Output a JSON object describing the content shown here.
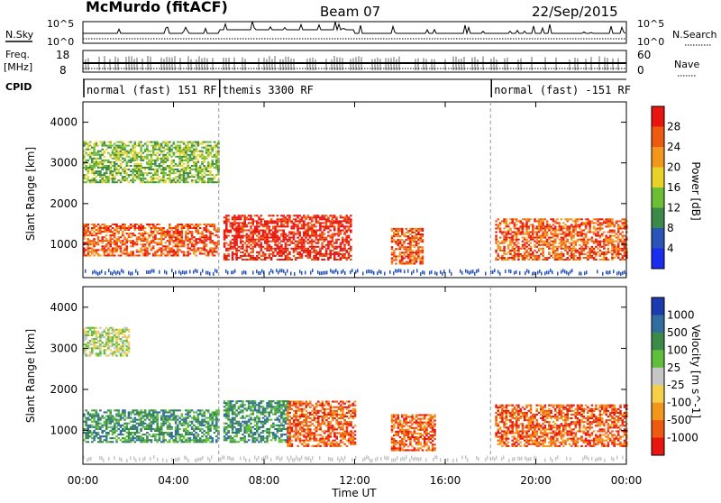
{
  "header": {
    "station": "McMurdo (fitACF)",
    "beam": "Beam 07",
    "date": "22/Sep/2015"
  },
  "aux_panels": {
    "nsky_label": "N.Sky",
    "nsky_scale_top": "10^5",
    "nsky_scale_bottom": "10^0",
    "nsearch_label": "N.Search",
    "nsearch_scale_top": "10^5",
    "nsearch_scale_bottom": "10^0",
    "freq_label": "Freq.",
    "freq_unit": "[MHz]",
    "freq_ticks": [
      "18",
      "8"
    ],
    "nave_label": "Nave",
    "nave_ticks": [
      "60",
      "0"
    ],
    "cpid_label": "CPID",
    "cpid_segments": [
      {
        "label": "normal (fast) 151 RF",
        "start_h": 0,
        "end_h": 6
      },
      {
        "label": "themis 3300 RF",
        "start_h": 6,
        "end_h": 18
      },
      {
        "label": "normal (fast) -151 RF",
        "start_h": 18,
        "end_h": 24
      }
    ]
  },
  "chart_data": [
    {
      "type": "heatmap",
      "ylabel": "Slant Range [km]",
      "xlabel": "Time UT",
      "xlim": [
        0,
        24
      ],
      "ylim": [
        180,
        4500
      ],
      "x_ticks": [
        "00:00",
        "04:00",
        "08:00",
        "12:00",
        "16:00",
        "20:00",
        "00:00"
      ],
      "y_ticks": [
        1000,
        2000,
        3000,
        4000
      ],
      "colorbar": {
        "title": "Power [dB]",
        "ticks": [
          "4",
          "8",
          "12",
          "16",
          "20",
          "24",
          "28"
        ],
        "colors": [
          "#1a2cf0",
          "#2a55b8",
          "#3b8a4a",
          "#6cbf35",
          "#e8d22a",
          "#f3961c",
          "#ef5a12",
          "#e8160f"
        ]
      },
      "echo_regions": [
        {
          "t0": 0.0,
          "t1": 6.0,
          "r0": 700,
          "r1": 1500,
          "level": 6
        },
        {
          "t0": 6.2,
          "t1": 11.8,
          "r0": 600,
          "r1": 1700,
          "level": 7
        },
        {
          "t0": 13.6,
          "t1": 15.0,
          "r0": 500,
          "r1": 1400,
          "level": 6
        },
        {
          "t0": 18.2,
          "t1": 24.0,
          "r0": 600,
          "r1": 1600,
          "level": 6
        },
        {
          "t0": 0.0,
          "t1": 6.0,
          "r0": 2500,
          "r1": 3500,
          "level": 3
        }
      ]
    },
    {
      "type": "heatmap",
      "ylabel": "Slant Range [km]",
      "xlabel": "Time UT",
      "xlim": [
        0,
        24
      ],
      "ylim": [
        180,
        4500
      ],
      "x_ticks": [
        "00:00",
        "04:00",
        "08:00",
        "12:00",
        "16:00",
        "20:00",
        "00:00"
      ],
      "y_ticks": [
        1000,
        2000,
        3000,
        4000
      ],
      "colorbar": {
        "title": "Velocity [m s^-1]",
        "ticks": [
          "1000",
          "500",
          "100",
          "25",
          "-25",
          "-100",
          "-500",
          "-1000"
        ],
        "colors": [
          "#1d3bb0",
          "#2f6e9e",
          "#3b8a4a",
          "#5fbf3a",
          "#c6c6c6",
          "#f5d04a",
          "#f3961c",
          "#ef5a12",
          "#e8160f"
        ]
      },
      "echo_regions": [
        {
          "t0": 0.0,
          "t1": 6.0,
          "r0": 700,
          "r1": 1500,
          "level": 2
        },
        {
          "t0": 6.2,
          "t1": 9.0,
          "r0": 700,
          "r1": 1700,
          "level": 2
        },
        {
          "t0": 9.0,
          "t1": 12.0,
          "r0": 600,
          "r1": 1700,
          "level": 7
        },
        {
          "t0": 13.6,
          "t1": 15.5,
          "r0": 500,
          "r1": 1400,
          "level": 7
        },
        {
          "t0": 18.2,
          "t1": 24.0,
          "r0": 600,
          "r1": 1600,
          "level": 7
        },
        {
          "t0": 0.0,
          "t1": 2.0,
          "r0": 2800,
          "r1": 3500,
          "level": 4
        }
      ]
    }
  ]
}
